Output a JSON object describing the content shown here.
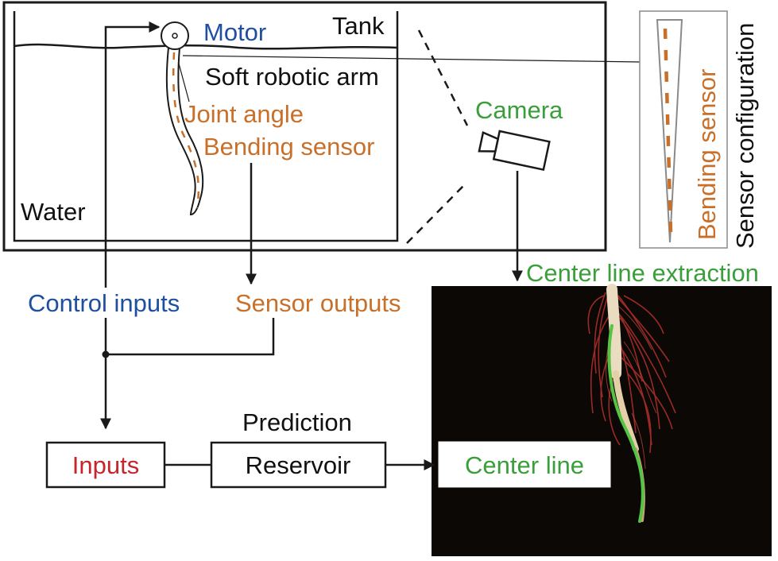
{
  "labels": {
    "motor": "Motor",
    "tank": "Tank",
    "soft_arm": "Soft robotic arm",
    "joint_angle": "Joint angle",
    "bending_sensor": "Bending sensor",
    "water": "Water",
    "camera": "Camera",
    "sensor_config_bending": "Bending sensor",
    "sensor_config": "Sensor configuration",
    "control_inputs": "Control inputs",
    "sensor_outputs": "Sensor outputs",
    "center_line_extraction": "Center line extraction",
    "prediction": "Prediction",
    "inputs": "Inputs",
    "reservoir": "Reservoir",
    "center_line": "Center line"
  },
  "icons": {
    "motor": "motor-icon",
    "camera": "camera-icon"
  },
  "colors": {
    "blue": "#1f4fa0",
    "orange": "#c8702a",
    "green": "#3a9e3a",
    "red": "#c3262c",
    "centerline_stroke": "#55c443"
  }
}
